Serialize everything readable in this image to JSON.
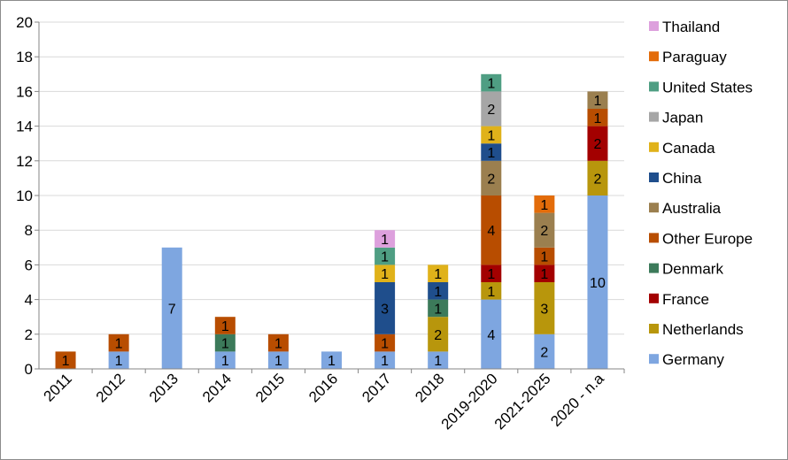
{
  "chart_data": {
    "type": "bar",
    "stacked": true,
    "title": "",
    "xlabel": "",
    "ylabel": "",
    "ylim": [
      0,
      20
    ],
    "yticks": [
      "0",
      "2",
      "4",
      "6",
      "8",
      "10",
      "12",
      "14",
      "16",
      "18",
      "20"
    ],
    "grid": "horizontal",
    "legend_position": "right",
    "categories": [
      "2011",
      "2012",
      "2013",
      "2014",
      "2015",
      "2016",
      "2017",
      "2018",
      "2019-2020",
      "2021-2025",
      "2020 - n.a"
    ],
    "series": [
      {
        "name": "Germany",
        "color": "#7ea6e0",
        "values": [
          0,
          1,
          7,
          1,
          1,
          1,
          1,
          1,
          4,
          2,
          10
        ]
      },
      {
        "name": "Netherlands",
        "color": "#b8960c",
        "values": [
          0,
          0,
          0,
          0,
          0,
          0,
          0,
          2,
          1,
          3,
          2
        ]
      },
      {
        "name": "France",
        "color": "#a30000",
        "values": [
          0,
          0,
          0,
          0,
          0,
          0,
          0,
          0,
          1,
          1,
          2
        ]
      },
      {
        "name": "Denmark",
        "color": "#3c7a5a",
        "values": [
          0,
          0,
          0,
          1,
          0,
          0,
          0,
          1,
          0,
          0,
          0
        ]
      },
      {
        "name": "Other Europe",
        "color": "#b84d00",
        "values": [
          1,
          1,
          0,
          1,
          1,
          0,
          1,
          0,
          4,
          1,
          1
        ]
      },
      {
        "name": "Australia",
        "color": "#9b7f4f",
        "values": [
          0,
          0,
          0,
          0,
          0,
          0,
          0,
          0,
          2,
          2,
          1
        ]
      },
      {
        "name": "China",
        "color": "#1f4e8c",
        "values": [
          0,
          0,
          0,
          0,
          0,
          0,
          3,
          1,
          1,
          0,
          0
        ]
      },
      {
        "name": "Canada",
        "color": "#e0b21a",
        "values": [
          0,
          0,
          0,
          0,
          0,
          0,
          1,
          1,
          1,
          0,
          0
        ]
      },
      {
        "name": "Japan",
        "color": "#a6a6a6",
        "values": [
          0,
          0,
          0,
          0,
          0,
          0,
          0,
          0,
          2,
          0,
          0
        ]
      },
      {
        "name": "United States",
        "color": "#4f9e83",
        "values": [
          0,
          0,
          0,
          0,
          0,
          0,
          1,
          0,
          1,
          0,
          0
        ]
      },
      {
        "name": "Paraguay",
        "color": "#e36c0a",
        "values": [
          0,
          0,
          0,
          0,
          0,
          0,
          0,
          0,
          0,
          1,
          0
        ]
      },
      {
        "name": "Thailand",
        "color": "#dda0dd",
        "values": [
          0,
          0,
          0,
          0,
          0,
          0,
          1,
          0,
          0,
          0,
          0
        ]
      }
    ],
    "legend_order": [
      "Thailand",
      "Paraguay",
      "United States",
      "Japan",
      "Canada",
      "China",
      "Australia",
      "Other Europe",
      "Denmark",
      "France",
      "Netherlands",
      "Germany"
    ]
  }
}
